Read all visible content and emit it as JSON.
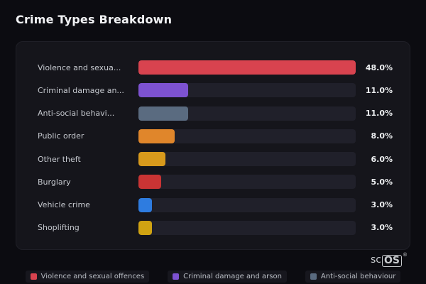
{
  "title": "Crime Types Breakdown",
  "watermark": {
    "prefix": "sc",
    "boxed": "OS",
    "reg": "®"
  },
  "chart_data": {
    "type": "bar",
    "orientation": "horizontal",
    "title": "Crime Types Breakdown",
    "max_value": 48,
    "grid": false,
    "legend_position": "bottom",
    "categories": [
      "Violence and sexual offences",
      "Criminal damage and arson",
      "Anti-social behaviour",
      "Public order",
      "Other theft",
      "Burglary",
      "Vehicle crime",
      "Shoplifting"
    ],
    "display_labels": [
      "Violence and sexua...",
      "Criminal damage an...",
      "Anti-social behavi...",
      "Public order",
      "Other theft",
      "Burglary",
      "Vehicle crime",
      "Shoplifting"
    ],
    "values": [
      48.0,
      11.0,
      11.0,
      8.0,
      6.0,
      5.0,
      3.0,
      3.0
    ],
    "value_labels": [
      "48.0%",
      "11.0%",
      "11.0%",
      "8.0%",
      "6.0%",
      "5.0%",
      "3.0%",
      "3.0%"
    ],
    "colors": [
      "#d8434f",
      "#7d52d1",
      "#5a6b80",
      "#e0862b",
      "#d89a1c",
      "#c93434",
      "#2e7ce0",
      "#d0a312"
    ],
    "track_color": "#20202a",
    "legend": [
      {
        "label": "Violence and sexual offences",
        "color": "#d8434f"
      },
      {
        "label": "Criminal damage and arson",
        "color": "#7d52d1"
      },
      {
        "label": "Anti-social behaviour",
        "color": "#5a6b80"
      }
    ]
  }
}
